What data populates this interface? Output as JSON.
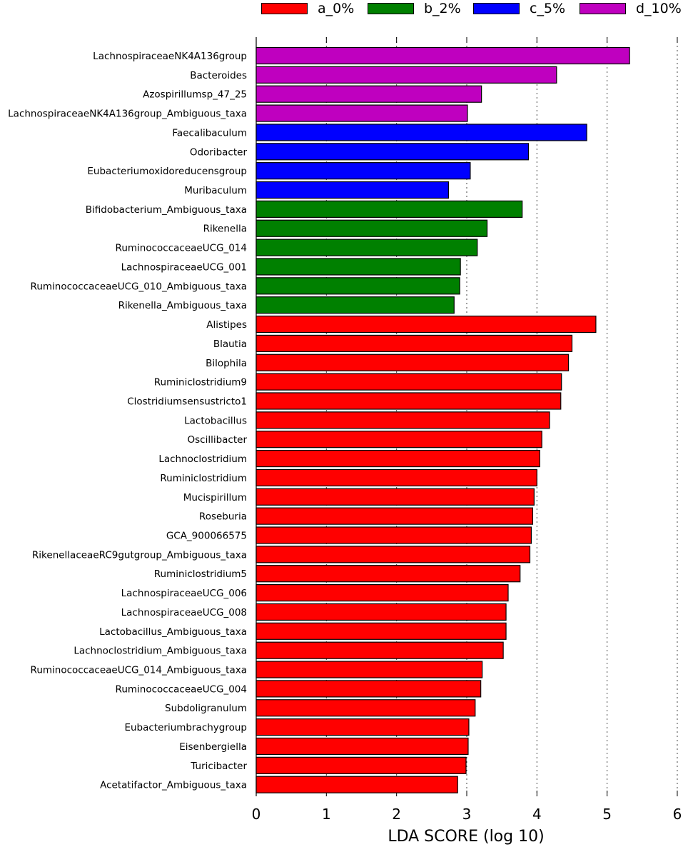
{
  "chart_data": {
    "type": "bar",
    "orientation": "horizontal",
    "title": "",
    "xlabel": "LDA SCORE (log 10)",
    "ylabel": "",
    "xlim": [
      0,
      6
    ],
    "xticks": [
      "0",
      "1",
      "2",
      "3",
      "4",
      "5",
      "6"
    ],
    "grid": "vertical dotted",
    "legend_position": "top",
    "legend": [
      {
        "label": "a_0%",
        "color": "#ff0000"
      },
      {
        "label": "b_2%",
        "color": "#008000"
      },
      {
        "label": "c_5%",
        "color": "#0000ff"
      },
      {
        "label": "d_10%",
        "color": "#bf00bf"
      }
    ],
    "bars": [
      {
        "label": "LachnospiraceaeNK4A136group",
        "value": 5.32,
        "group": "d_10%"
      },
      {
        "label": "Bacteroides",
        "value": 4.28,
        "group": "d_10%"
      },
      {
        "label": "Azospirillumsp_47_25",
        "value": 3.21,
        "group": "d_10%"
      },
      {
        "label": "LachnospiraceaeNK4A136group_Ambiguous_taxa",
        "value": 3.01,
        "group": "d_10%"
      },
      {
        "label": "Faecalibaculum",
        "value": 4.71,
        "group": "c_5%"
      },
      {
        "label": "Odoribacter",
        "value": 3.88,
        "group": "c_5%"
      },
      {
        "label": "Eubacteriumoxidoreducensgroup",
        "value": 3.05,
        "group": "c_5%"
      },
      {
        "label": "Muribaculum",
        "value": 2.74,
        "group": "c_5%"
      },
      {
        "label": "Bifidobacterium_Ambiguous_taxa",
        "value": 3.79,
        "group": "b_2%"
      },
      {
        "label": "Rikenella",
        "value": 3.29,
        "group": "b_2%"
      },
      {
        "label": "RuminococcaceaeUCG_014",
        "value": 3.15,
        "group": "b_2%"
      },
      {
        "label": "LachnospiraceaeUCG_001",
        "value": 2.91,
        "group": "b_2%"
      },
      {
        "label": "RuminococcaceaeUCG_010_Ambiguous_taxa",
        "value": 2.9,
        "group": "b_2%"
      },
      {
        "label": "Rikenella_Ambiguous_taxa",
        "value": 2.82,
        "group": "b_2%"
      },
      {
        "label": "Alistipes",
        "value": 4.84,
        "group": "a_0%"
      },
      {
        "label": "Blautia",
        "value": 4.5,
        "group": "a_0%"
      },
      {
        "label": "Bilophila",
        "value": 4.45,
        "group": "a_0%"
      },
      {
        "label": "Ruminiclostridium9",
        "value": 4.35,
        "group": "a_0%"
      },
      {
        "label": "Clostridiumsensustricto1",
        "value": 4.34,
        "group": "a_0%"
      },
      {
        "label": "Lactobacillus",
        "value": 4.18,
        "group": "a_0%"
      },
      {
        "label": "Oscillibacter",
        "value": 4.07,
        "group": "a_0%"
      },
      {
        "label": "Lachnoclostridium",
        "value": 4.04,
        "group": "a_0%"
      },
      {
        "label": "Ruminiclostridium",
        "value": 4.0,
        "group": "a_0%"
      },
      {
        "label": "Mucispirillum",
        "value": 3.96,
        "group": "a_0%"
      },
      {
        "label": "Roseburia",
        "value": 3.94,
        "group": "a_0%"
      },
      {
        "label": "GCA_900066575",
        "value": 3.92,
        "group": "a_0%"
      },
      {
        "label": "RikenellaceaeRC9gutgroup_Ambiguous_taxa",
        "value": 3.9,
        "group": "a_0%"
      },
      {
        "label": "Ruminiclostridium5",
        "value": 3.76,
        "group": "a_0%"
      },
      {
        "label": "LachnospiraceaeUCG_006",
        "value": 3.59,
        "group": "a_0%"
      },
      {
        "label": "LachnospiraceaeUCG_008",
        "value": 3.56,
        "group": "a_0%"
      },
      {
        "label": "Lactobacillus_Ambiguous_taxa",
        "value": 3.56,
        "group": "a_0%"
      },
      {
        "label": "Lachnoclostridium_Ambiguous_taxa",
        "value": 3.52,
        "group": "a_0%"
      },
      {
        "label": "RuminococcaceaeUCG_014_Ambiguous_taxa",
        "value": 3.22,
        "group": "a_0%"
      },
      {
        "label": "RuminococcaceaeUCG_004",
        "value": 3.2,
        "group": "a_0%"
      },
      {
        "label": "Subdoligranulum",
        "value": 3.12,
        "group": "a_0%"
      },
      {
        "label": "Eubacteriumbrachygroup",
        "value": 3.03,
        "group": "a_0%"
      },
      {
        "label": "Eisenbergiella",
        "value": 3.02,
        "group": "a_0%"
      },
      {
        "label": "Turicibacter",
        "value": 2.99,
        "group": "a_0%"
      },
      {
        "label": "Acetatifactor_Ambiguous_taxa",
        "value": 2.87,
        "group": "a_0%"
      }
    ]
  }
}
